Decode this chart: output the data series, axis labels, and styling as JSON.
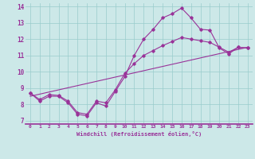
{
  "xlabel": "Windchill (Refroidissement éolien,°C)",
  "bg_color": "#cce8e8",
  "line_color": "#993399",
  "grid_color": "#99cccc",
  "xlim": [
    -0.5,
    23.5
  ],
  "ylim": [
    6.8,
    14.2
  ],
  "yticks": [
    7,
    8,
    9,
    10,
    11,
    12,
    13,
    14
  ],
  "xticks": [
    0,
    1,
    2,
    3,
    4,
    5,
    6,
    7,
    8,
    9,
    10,
    11,
    12,
    13,
    14,
    15,
    16,
    17,
    18,
    19,
    20,
    21,
    22,
    23
  ],
  "series1_x": [
    0,
    1,
    2,
    3,
    4,
    5,
    6,
    7,
    8,
    9,
    10,
    11,
    12,
    13,
    14,
    15,
    16,
    17,
    18,
    19,
    20,
    21,
    22,
    23
  ],
  "series1_y": [
    8.7,
    8.2,
    8.5,
    8.5,
    8.1,
    7.4,
    7.3,
    8.1,
    7.9,
    8.8,
    9.7,
    11.0,
    12.0,
    12.6,
    13.3,
    13.55,
    13.9,
    13.3,
    12.6,
    12.55,
    11.45,
    11.1,
    11.5,
    11.45
  ],
  "series2_x": [
    0,
    1,
    2,
    3,
    4,
    5,
    6,
    7,
    8,
    9,
    10,
    11,
    12,
    13,
    14,
    15,
    16,
    17,
    18,
    19,
    20,
    21,
    22,
    23
  ],
  "series2_y": [
    8.7,
    8.3,
    8.6,
    8.55,
    8.2,
    7.5,
    7.4,
    8.2,
    8.1,
    8.9,
    9.9,
    10.5,
    11.0,
    11.3,
    11.6,
    11.85,
    12.1,
    12.0,
    11.9,
    11.8,
    11.5,
    11.2,
    11.5,
    11.45
  ],
  "series3_x": [
    0,
    23
  ],
  "series3_y": [
    8.5,
    11.5
  ]
}
